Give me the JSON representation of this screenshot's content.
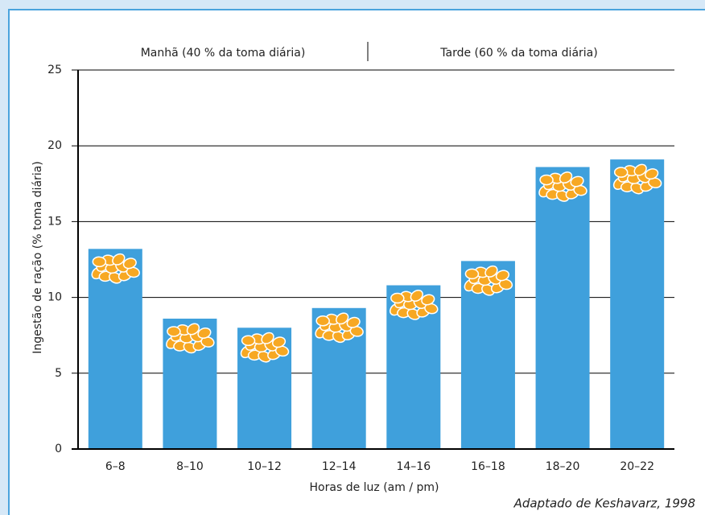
{
  "chart_data": {
    "type": "bar",
    "categories": [
      "6–8",
      "8–10",
      "10–12",
      "12–14",
      "14–16",
      "16–18",
      "18–20",
      "20–22"
    ],
    "values": [
      13.2,
      8.6,
      8.0,
      9.3,
      10.8,
      12.4,
      18.6,
      19.1
    ],
    "color": "#3fa0dc",
    "ylim": [
      0,
      25
    ],
    "yticks": [
      0,
      5,
      10,
      15,
      20,
      25
    ],
    "grid": true,
    "xlabel": "Horas de luz (am / pm)",
    "ylabel": "Ingestão de ração (% toma diária)",
    "annotations": [
      "Manhã (40 % da toma diária)",
      "Tarde (60 % da toma diária)"
    ],
    "source": "Adaptado de Keshavarz, 1998"
  }
}
